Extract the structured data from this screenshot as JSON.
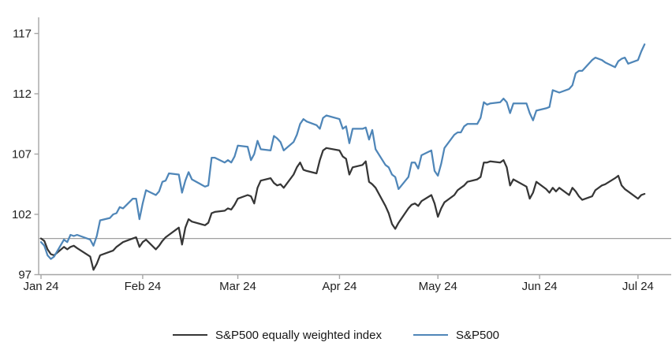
{
  "chart_data": {
    "type": "line",
    "legend_position": "bottom-center",
    "colors": {
      "axis": "#a6a6a6",
      "grid": "#9f9f9f",
      "label": "#1f1f1f"
    },
    "y_axis": {
      "ticks": [
        97,
        102,
        107,
        112,
        117
      ],
      "range": [
        97,
        118.2
      ],
      "baseline": 100,
      "grid": "single-line-at-100"
    },
    "x_axis": {
      "ticks": [
        {
          "label": "Jan 24",
          "date": "Jan 1"
        },
        {
          "label": "Feb 24",
          "date": "Feb 1"
        },
        {
          "label": "Mar 24",
          "date": "Mar 1"
        },
        {
          "label": "Apr 24",
          "date": "Apr 1"
        },
        {
          "label": "May 24",
          "date": "May 1"
        },
        {
          "label": "Jun 24",
          "date": "Jun 1"
        },
        {
          "label": "Jul 24",
          "date": "Jul 1"
        }
      ]
    },
    "dates": [
      "Jan 1",
      "Jan 2",
      "Jan 3",
      "Jan 4",
      "Jan 5",
      "Jan 8",
      "Jan 9",
      "Jan 10",
      "Jan 11",
      "Jan 12",
      "Jan 16",
      "Jan 17",
      "Jan 18",
      "Jan 19",
      "Jan 22",
      "Jan 23",
      "Jan 24",
      "Jan 25",
      "Jan 26",
      "Jan 29",
      "Jan 30",
      "Jan 31",
      "Feb 1",
      "Feb 2",
      "Feb 5",
      "Feb 6",
      "Feb 7",
      "Feb 8",
      "Feb 9",
      "Feb 12",
      "Feb 13",
      "Feb 14",
      "Feb 15",
      "Feb 16",
      "Feb 20",
      "Feb 21",
      "Feb 22",
      "Feb 23",
      "Feb 26",
      "Feb 27",
      "Feb 28",
      "Feb 29",
      "Mar 1",
      "Mar 4",
      "Mar 5",
      "Mar 6",
      "Mar 7",
      "Mar 8",
      "Mar 11",
      "Mar 12",
      "Mar 13",
      "Mar 14",
      "Mar 15",
      "Mar 18",
      "Mar 19",
      "Mar 20",
      "Mar 21",
      "Mar 22",
      "Mar 25",
      "Mar 26",
      "Mar 27",
      "Mar 28",
      "Apr 1",
      "Apr 2",
      "Apr 3",
      "Apr 4",
      "Apr 5",
      "Apr 8",
      "Apr 9",
      "Apr 10",
      "Apr 11",
      "Apr 12",
      "Apr 15",
      "Apr 16",
      "Apr 17",
      "Apr 18",
      "Apr 19",
      "Apr 22",
      "Apr 23",
      "Apr 24",
      "Apr 25",
      "Apr 26",
      "Apr 29",
      "Apr 30",
      "May 1",
      "May 2",
      "May 3",
      "May 6",
      "May 7",
      "May 8",
      "May 9",
      "May 10",
      "May 13",
      "May 14",
      "May 15",
      "May 16",
      "May 17",
      "May 20",
      "May 21",
      "May 22",
      "May 23",
      "May 24",
      "May 28",
      "May 29",
      "May 30",
      "May 31",
      "Jun 3",
      "Jun 4",
      "Jun 5",
      "Jun 6",
      "Jun 7",
      "Jun 10",
      "Jun 11",
      "Jun 12",
      "Jun 13",
      "Jun 14",
      "Jun 17",
      "Jun 18",
      "Jun 20",
      "Jun 21",
      "Jun 24",
      "Jun 25",
      "Jun 26",
      "Jun 27",
      "Jun 28",
      "Jul 1",
      "Jul 2",
      "Jul 3"
    ],
    "series": [
      {
        "id": "equal-weight",
        "name": "S&P500 equally weighted index",
        "color": "#363636",
        "values": [
          100.0,
          99.8,
          99.1,
          98.7,
          98.6,
          99.3,
          99.1,
          99.3,
          99.4,
          99.2,
          98.5,
          97.4,
          97.9,
          98.6,
          98.9,
          99.0,
          99.3,
          99.5,
          99.7,
          100.0,
          100.1,
          99.3,
          99.7,
          99.9,
          99.1,
          99.4,
          99.8,
          100.1,
          100.3,
          100.9,
          99.5,
          100.9,
          101.6,
          101.4,
          101.1,
          101.3,
          102.1,
          102.2,
          102.3,
          102.5,
          102.4,
          102.8,
          103.3,
          103.6,
          103.5,
          102.9,
          104.2,
          104.8,
          105.0,
          104.6,
          104.4,
          104.5,
          104.2,
          105.3,
          105.9,
          106.3,
          105.7,
          105.6,
          105.4,
          106.5,
          107.3,
          107.5,
          107.3,
          106.8,
          106.6,
          105.3,
          105.9,
          106.1,
          106.4,
          104.7,
          104.5,
          104.2,
          102.7,
          102.1,
          101.2,
          100.8,
          101.3,
          102.5,
          102.8,
          102.9,
          102.7,
          103.1,
          103.6,
          102.9,
          101.8,
          102.5,
          103.0,
          103.6,
          104.0,
          104.2,
          104.4,
          104.7,
          104.9,
          105.1,
          106.3,
          106.3,
          106.4,
          106.3,
          106.5,
          105.9,
          104.4,
          104.9,
          104.3,
          103.3,
          103.8,
          104.7,
          104.1,
          103.8,
          104.2,
          103.9,
          104.2,
          103.6,
          104.2,
          103.9,
          103.5,
          103.2,
          103.5,
          104.0,
          104.4,
          104.5,
          105.0,
          105.2,
          104.4,
          104.1,
          103.9,
          103.3,
          103.6,
          103.7
        ]
      },
      {
        "id": "sp500",
        "name": "S&P500",
        "color": "#4f86b8",
        "values": [
          99.7,
          99.4,
          98.6,
          98.3,
          98.5,
          99.9,
          99.7,
          100.3,
          100.2,
          100.3,
          99.9,
          99.4,
          100.2,
          101.5,
          101.7,
          102.0,
          102.1,
          102.6,
          102.5,
          103.3,
          103.3,
          101.6,
          102.9,
          104.0,
          103.6,
          103.9,
          104.7,
          104.8,
          105.4,
          105.3,
          103.8,
          104.8,
          105.5,
          104.9,
          104.3,
          104.4,
          106.7,
          106.7,
          106.3,
          106.5,
          106.3,
          106.8,
          107.7,
          107.6,
          106.5,
          107.0,
          108.1,
          107.4,
          107.3,
          108.5,
          108.3,
          108.0,
          107.3,
          108.0,
          108.6,
          109.5,
          109.9,
          109.7,
          109.4,
          109.1,
          110.0,
          110.2,
          109.9,
          109.1,
          109.3,
          107.9,
          109.1,
          109.1,
          109.2,
          108.2,
          109.0,
          107.4,
          106.1,
          105.9,
          105.3,
          105.1,
          104.1,
          105.1,
          106.3,
          106.3,
          105.8,
          106.9,
          107.3,
          105.6,
          105.2,
          106.2,
          107.5,
          108.6,
          108.8,
          108.8,
          109.3,
          109.5,
          109.5,
          110.0,
          111.3,
          111.1,
          111.2,
          111.3,
          111.6,
          111.3,
          110.4,
          111.2,
          111.2,
          110.4,
          109.8,
          110.6,
          110.8,
          110.9,
          112.3,
          112.2,
          112.1,
          112.4,
          112.7,
          113.7,
          113.9,
          113.9,
          114.8,
          115.0,
          114.8,
          114.6,
          114.2,
          114.7,
          114.9,
          115.0,
          114.5,
          114.8,
          115.5,
          116.1
        ]
      }
    ]
  }
}
